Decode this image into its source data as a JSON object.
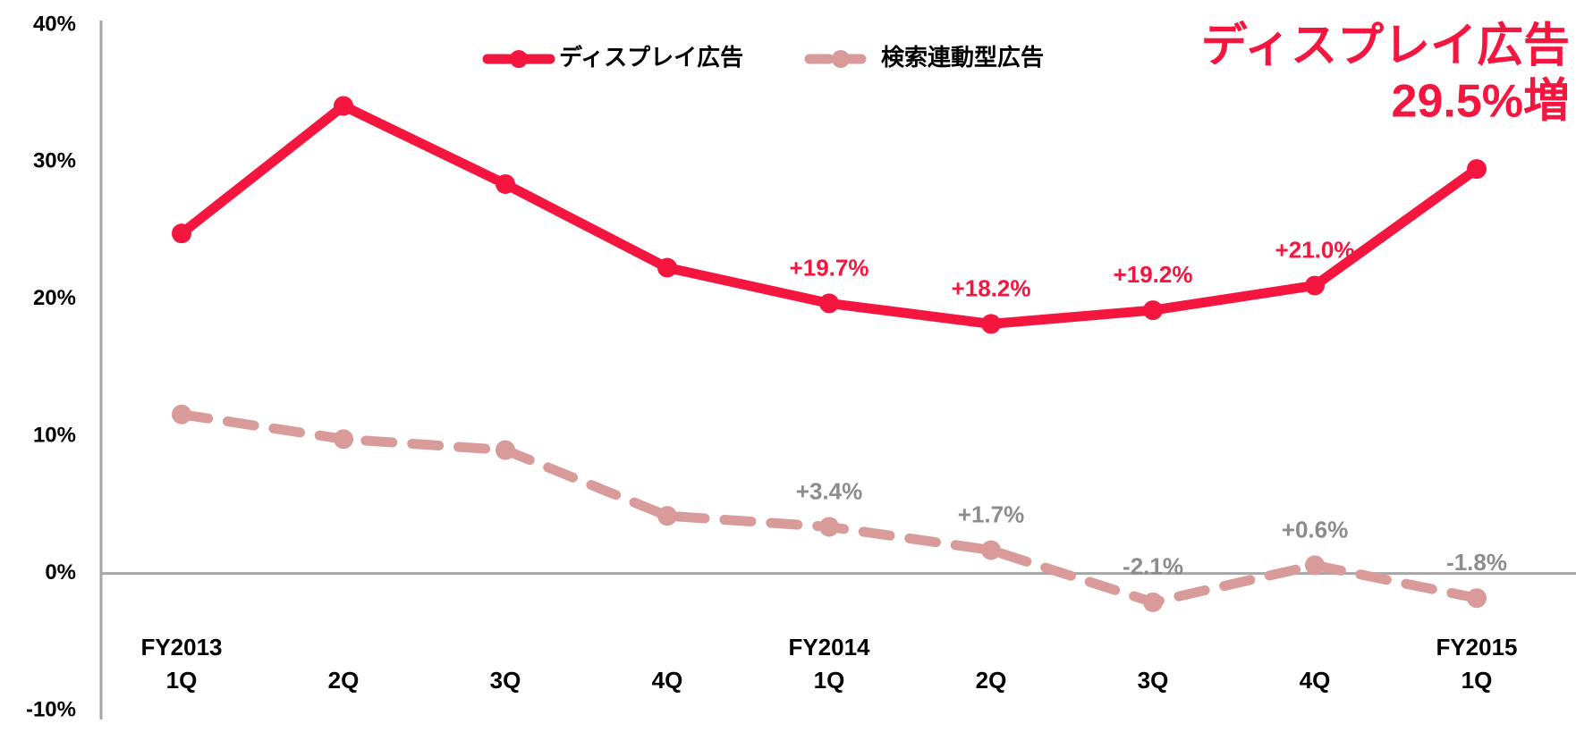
{
  "chart_data": {
    "type": "line",
    "annotation": [
      "ディスプレイ広告",
      "29.5%増"
    ],
    "annotation_color": "#f5163f",
    "categories": [
      [
        "FY2013",
        "1Q"
      ],
      [
        "2Q"
      ],
      [
        "3Q"
      ],
      [
        "4Q"
      ],
      [
        "FY2014",
        "1Q"
      ],
      [
        "2Q"
      ],
      [
        "3Q"
      ],
      [
        "4Q"
      ],
      [
        "FY2015",
        "1Q"
      ]
    ],
    "series": [
      {
        "name": "ディスプレイ広告",
        "color": "#f5163f",
        "dashed": false,
        "label_color": "#f5163f",
        "values": [
          24.8,
          34.1,
          28.4,
          22.3,
          19.7,
          18.2,
          19.2,
          21.0,
          29.5
        ],
        "value_labels": [
          null,
          null,
          null,
          null,
          "+19.7%",
          "+18.2%",
          "+19.2%",
          "+21.0%",
          null
        ]
      },
      {
        "name": "検索連動型広告",
        "color": "#d99a9a",
        "dashed": true,
        "label_color": "#8c8c8c",
        "values": [
          11.6,
          9.8,
          9.0,
          4.2,
          3.4,
          1.7,
          -2.1,
          0.6,
          -1.8
        ],
        "value_labels": [
          null,
          null,
          null,
          null,
          "+3.4%",
          "+1.7%",
          "-2.1%",
          "+0.6%",
          "-1.8%"
        ]
      }
    ],
    "ylim": [
      -10,
      40
    ],
    "yticks": [
      {
        "value": 40,
        "label": "40%"
      },
      {
        "value": 30,
        "label": "30%"
      },
      {
        "value": 20,
        "label": "20%"
      },
      {
        "value": 10,
        "label": "10%"
      },
      {
        "value": 0,
        "label": "0%"
      },
      {
        "value": -10,
        "label": "-10%"
      }
    ],
    "legend": "top"
  }
}
